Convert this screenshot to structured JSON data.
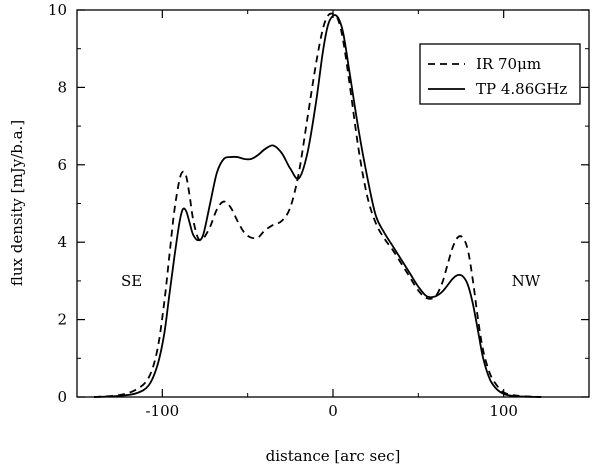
{
  "chart_data": {
    "type": "line",
    "title": "",
    "xlabel": "distance [arc sec]",
    "ylabel": "flux density [mJy/b.a.]",
    "xlim": [
      -150,
      150
    ],
    "ylim": [
      0,
      10
    ],
    "grid": false,
    "legend_position": "top-right",
    "x_ticks": [
      -100,
      0,
      100
    ],
    "x_tick_labels": [
      "-100",
      "0",
      "100"
    ],
    "y_ticks": [
      0,
      2,
      4,
      6,
      8,
      10
    ],
    "y_tick_labels": [
      "0",
      "2",
      "4",
      "6",
      "8",
      "10"
    ],
    "annotations": [
      {
        "text": "SE",
        "x": -118,
        "y": 3.0
      },
      {
        "text": "NW",
        "x": 113,
        "y": 3.0
      }
    ],
    "series": [
      {
        "name": "IR 70μm",
        "style": "dashed",
        "x": [
          -140,
          -125,
          -115,
          -108,
          -103,
          -99,
          -96,
          -93,
          -90,
          -88,
          -86,
          -84,
          -82,
          -79,
          -76,
          -72,
          -68,
          -64,
          -60,
          -56,
          -52,
          -48,
          -44,
          -40,
          -35,
          -30,
          -25,
          -20,
          -15,
          -10,
          -6,
          -3,
          0,
          3,
          6,
          10,
          15,
          20,
          25,
          30,
          35,
          40,
          45,
          50,
          55,
          60,
          64,
          67,
          70,
          73,
          76,
          79,
          82,
          85,
          88,
          92,
          96,
          100,
          105,
          112,
          122
        ],
        "values": [
          0.0,
          0.05,
          0.2,
          0.5,
          1.2,
          2.4,
          3.6,
          4.8,
          5.6,
          5.82,
          5.7,
          5.2,
          4.6,
          4.1,
          4.1,
          4.4,
          4.85,
          5.05,
          4.9,
          4.55,
          4.25,
          4.12,
          4.12,
          4.3,
          4.45,
          4.55,
          4.9,
          5.8,
          7.2,
          8.6,
          9.5,
          9.85,
          9.9,
          9.75,
          9.2,
          8.0,
          6.4,
          5.2,
          4.5,
          4.1,
          3.8,
          3.45,
          3.1,
          2.75,
          2.55,
          2.6,
          2.95,
          3.4,
          3.85,
          4.12,
          4.12,
          3.8,
          3.0,
          2.0,
          1.2,
          0.6,
          0.3,
          0.12,
          0.05,
          0.02,
          0.0
        ]
      },
      {
        "name": "TP 4.86GHz",
        "style": "solid",
        "x": [
          -140,
          -125,
          -115,
          -108,
          -103,
          -99,
          -96,
          -93,
          -90,
          -88,
          -86,
          -84,
          -82,
          -79,
          -76,
          -72,
          -68,
          -64,
          -60,
          -56,
          -52,
          -48,
          -44,
          -40,
          -35,
          -30,
          -25,
          -20,
          -15,
          -10,
          -6,
          -3,
          0,
          3,
          6,
          10,
          15,
          20,
          25,
          30,
          35,
          40,
          45,
          50,
          55,
          60,
          64,
          67,
          70,
          73,
          76,
          79,
          82,
          85,
          88,
          92,
          96,
          100,
          105,
          112,
          122
        ],
        "values": [
          0.0,
          0.03,
          0.1,
          0.3,
          0.8,
          1.6,
          2.6,
          3.6,
          4.5,
          4.85,
          4.8,
          4.5,
          4.2,
          4.05,
          4.2,
          5.0,
          5.8,
          6.15,
          6.2,
          6.2,
          6.15,
          6.15,
          6.25,
          6.4,
          6.5,
          6.3,
          5.9,
          5.65,
          6.3,
          7.6,
          8.9,
          9.6,
          9.85,
          9.8,
          9.4,
          8.3,
          6.9,
          5.7,
          4.7,
          4.25,
          3.9,
          3.55,
          3.2,
          2.85,
          2.6,
          2.6,
          2.72,
          2.88,
          3.05,
          3.15,
          3.12,
          2.9,
          2.4,
          1.7,
          1.0,
          0.45,
          0.2,
          0.08,
          0.03,
          0.01,
          0.0
        ]
      }
    ]
  }
}
